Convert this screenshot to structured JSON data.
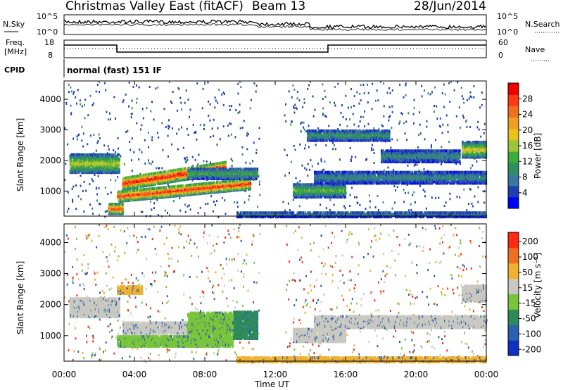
{
  "header": {
    "station": "Christmas Valley East (fitACF)",
    "beam": "Beam 13",
    "date": "28/Jun/2014"
  },
  "noise_panel": {
    "left_label": "N.Sky",
    "right_label": "N.Search",
    "left_ticks": [
      "10^5",
      "10^0"
    ],
    "right_ticks": [
      "10^5",
      "10^0"
    ]
  },
  "freq_panel": {
    "left_label": "Freq.",
    "left_unit": "[MHz]",
    "right_label": "Nave",
    "left_ticks": [
      "18",
      "8"
    ],
    "right_ticks": [
      "60",
      "0"
    ]
  },
  "cpid": {
    "label": "CPID",
    "text": "normal (fast) 151 IF"
  },
  "chart_data": [
    {
      "type": "heatmap",
      "name": "Power",
      "ylabel": "Slant Range [km]",
      "yticks": [
        1000,
        2000,
        3000,
        4000
      ],
      "ylim": [
        180,
        4600
      ],
      "colorbar_label": "Power [dB]",
      "colorbar_ticks": [
        "4",
        "8",
        "12",
        "16",
        "20",
        "24",
        "28"
      ],
      "colorbar_colors": [
        "#0000ff",
        "#1e3fb0",
        "#3a78a0",
        "#2f8f5f",
        "#3caa3c",
        "#9bc43a",
        "#e8c21c",
        "#f0a020",
        "#f07020",
        "#ff3a12",
        "#ee0000"
      ],
      "features": [
        {
          "t0": 0.3,
          "t1": 3.1,
          "r0": 1650,
          "r1": 2250,
          "level": 0.55
        },
        {
          "t0": 3.3,
          "t1": 9.2,
          "r0": 1100,
          "r1": 1500,
          "level": 0.95,
          "slope": 90
        },
        {
          "t0": 3.0,
          "t1": 10.6,
          "r0": 700,
          "r1": 1050,
          "level": 0.9,
          "slope": 55
        },
        {
          "t0": 7.0,
          "t1": 11.0,
          "r0": 1450,
          "r1": 1800,
          "level": 0.4
        },
        {
          "t0": 2.5,
          "t1": 3.3,
          "r0": 300,
          "r1": 650,
          "level": 0.85
        },
        {
          "t0": 13.0,
          "t1": 16.0,
          "r0": 850,
          "r1": 1300,
          "level": 0.45
        },
        {
          "t0": 14.2,
          "t1": 24.0,
          "r0": 1300,
          "r1": 1700,
          "level": 0.3
        },
        {
          "t0": 22.6,
          "t1": 24.0,
          "r0": 2150,
          "r1": 2650,
          "level": 0.6
        },
        {
          "t0": 18.0,
          "t1": 22.5,
          "r0": 2000,
          "r1": 2400,
          "level": 0.3
        },
        {
          "t0": 13.8,
          "t1": 18.5,
          "r0": 2700,
          "r1": 3050,
          "level": 0.35
        },
        {
          "t0": 9.8,
          "t1": 24.0,
          "r0": 200,
          "r1": 380,
          "level": 0.25
        }
      ]
    },
    {
      "type": "heatmap",
      "name": "Velocity",
      "ylabel": "Slant Range [km]",
      "yticks": [
        1000,
        2000,
        3000,
        4000
      ],
      "ylim": [
        180,
        4600
      ],
      "colorbar_label": "Velocity [m s⁻¹]",
      "colorbar_ticks": [
        "200",
        "100",
        "50",
        "15",
        "-15",
        "-50",
        "-100",
        "-200"
      ],
      "colorbar_colors": [
        "#1030c0",
        "#2a60b0",
        "#2f8a5a",
        "#78c43a",
        "#c8c8c0",
        "#f0b030",
        "#f07020",
        "#ff2a10"
      ],
      "features": [
        {
          "t0": 0.3,
          "t1": 3.1,
          "r0": 1650,
          "r1": 2250,
          "color": "#c8c8c0"
        },
        {
          "t0": 3.3,
          "t1": 9.2,
          "r0": 1100,
          "r1": 1500,
          "color": "#c8c8c0"
        },
        {
          "t0": 3.0,
          "t1": 9.6,
          "r0": 700,
          "r1": 1050,
          "color": "#78c43a"
        },
        {
          "t0": 9.6,
          "t1": 11.0,
          "r0": 950,
          "r1": 1850,
          "color": "#2f8a5a"
        },
        {
          "t0": 7.0,
          "t1": 9.6,
          "r0": 1100,
          "r1": 1800,
          "color": "#78c43a"
        },
        {
          "t0": 3.0,
          "t1": 4.4,
          "r0": 2400,
          "r1": 2650,
          "color": "#f0b030"
        },
        {
          "t0": 13.0,
          "t1": 16.0,
          "r0": 850,
          "r1": 1300,
          "color": "#c8c8c0"
        },
        {
          "t0": 14.2,
          "t1": 24.0,
          "r0": 1300,
          "r1": 1700,
          "color": "#c8c8c0"
        },
        {
          "t0": 22.6,
          "t1": 24.0,
          "r0": 2150,
          "r1": 2650,
          "color": "#c8c8c0"
        },
        {
          "t0": 9.8,
          "t1": 24.0,
          "r0": 200,
          "r1": 380,
          "color": "#f0b030"
        }
      ]
    }
  ],
  "x_axis": {
    "label": "Time UT",
    "ticks": [
      "00:00",
      "04:00",
      "08:00",
      "12:00",
      "16:00",
      "20:00",
      "00:00"
    ]
  }
}
